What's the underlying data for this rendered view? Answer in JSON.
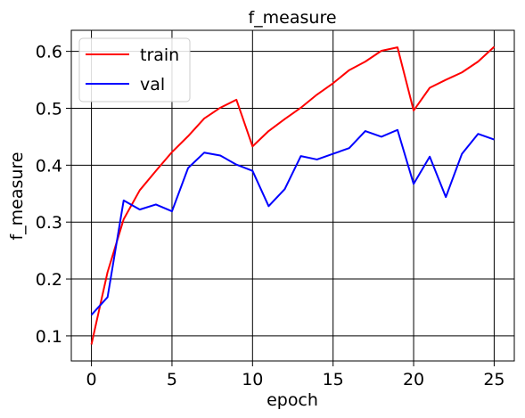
{
  "chart_data": {
    "type": "line",
    "title": "f_measure",
    "xlabel": "epoch",
    "ylabel": "f_measure",
    "xlim": [
      -1.25,
      26.25
    ],
    "ylim": [
      0.056,
      0.637
    ],
    "xticks": [
      0,
      5,
      10,
      15,
      20,
      25
    ],
    "yticks": [
      0.1,
      0.2,
      0.3,
      0.4,
      0.5,
      0.6
    ],
    "xtick_labels": [
      "0",
      "5",
      "10",
      "15",
      "20",
      "25"
    ],
    "ytick_labels": [
      "0.1",
      "0.2",
      "0.3",
      "0.4",
      "0.5",
      "0.6"
    ],
    "grid": true,
    "legend": "upper left",
    "x": [
      0,
      1,
      2,
      3,
      4,
      5,
      6,
      7,
      8,
      9,
      10,
      11,
      12,
      13,
      14,
      15,
      16,
      17,
      18,
      19,
      20,
      21,
      22,
      23,
      24,
      25
    ],
    "series": [
      {
        "name": "train",
        "color": "#ff0000",
        "values": [
          0.085,
          0.212,
          0.305,
          0.356,
          0.39,
          0.423,
          0.451,
          0.482,
          0.501,
          0.515,
          0.433,
          0.46,
          0.481,
          0.501,
          0.524,
          0.544,
          0.567,
          0.582,
          0.601,
          0.607,
          0.496,
          0.536,
          0.55,
          0.563,
          0.582,
          0.608
        ]
      },
      {
        "name": "val",
        "color": "#0000ff",
        "values": [
          0.137,
          0.168,
          0.338,
          0.322,
          0.331,
          0.319,
          0.395,
          0.422,
          0.417,
          0.401,
          0.39,
          0.328,
          0.358,
          0.416,
          0.41,
          0.42,
          0.43,
          0.46,
          0.45,
          0.462,
          0.367,
          0.415,
          0.344,
          0.42,
          0.455,
          0.445
        ]
      }
    ]
  }
}
